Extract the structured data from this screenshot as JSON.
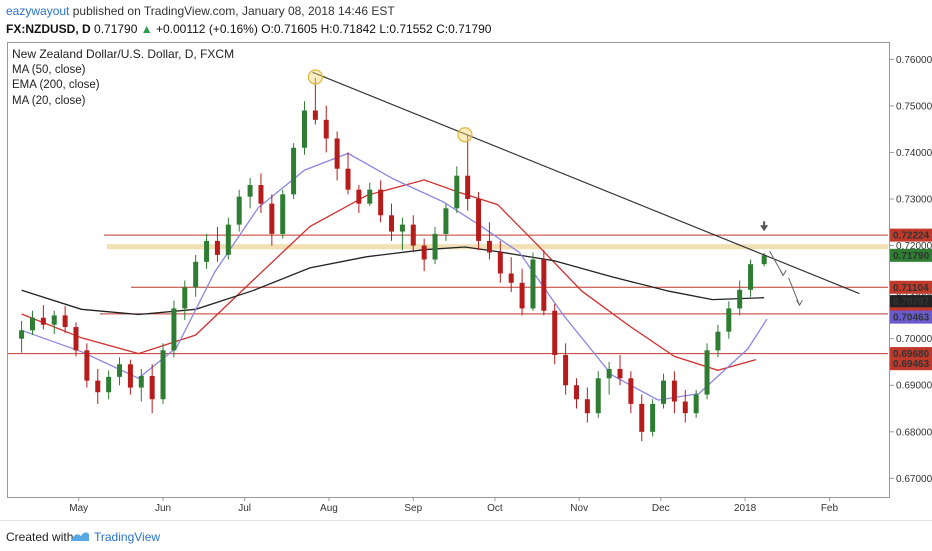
{
  "header": {
    "author": "eazywayout",
    "published_text": "published on TradingView.com, January 08, 2018 14:46 EST",
    "symbol": "FX:NZDUSD, D",
    "last": "0.71790",
    "change": "+0.00112 (+0.16%)",
    "ohlc": {
      "o": "0.71605",
      "h": "0.71842",
      "l": "0.71552",
      "c": "0.71790"
    },
    "ohlc_labels": {
      "o": "O:",
      "h": "H:",
      "l": "L:",
      "c": "C:"
    }
  },
  "legend": {
    "title": "New Zealand Dollar/U.S. Dollar, D, FXCM",
    "lines": [
      "MA (50, close)",
      "EMA (200, close)",
      "MA (20, close)"
    ]
  },
  "footer": {
    "created_with": "Created with",
    "brand": "TradingView"
  },
  "colors": {
    "up": "#2e7d32",
    "down": "#b71c1c",
    "ma50": "#d32f2f",
    "ema200": "#222222",
    "ma20": "#8b86e6",
    "hline": "#c0392b",
    "zone": "#f0d9a7",
    "trend": "#333333"
  },
  "chart_data": {
    "type": "candlestick",
    "x_axis": {
      "ticks": [
        "May",
        "Jun",
        "Jul",
        "Aug",
        "Sep",
        "Oct",
        "Nov",
        "Dec",
        "2018",
        "Feb"
      ]
    },
    "y_axis": {
      "range": [
        0.666,
        0.7635
      ],
      "ticks": [
        "0.76000",
        "0.75000",
        "0.74000",
        "0.73000",
        "0.72000",
        "0.71000",
        "0.70000",
        "0.69000",
        "0.68000",
        "0.67000"
      ]
    },
    "price_labels": [
      {
        "text": "0.72224",
        "value": 0.72224,
        "bg": "#c0392b",
        "fg": "#ffffff"
      },
      {
        "text": "0.71790",
        "value": 0.7179,
        "bg": "#2e7d32",
        "fg": "#ffffff"
      },
      {
        "text": "0.71104",
        "value": 0.71104,
        "bg": "#c0392b",
        "fg": "#ffffff"
      },
      {
        "text": "0.70797",
        "value": 0.70797,
        "bg": "#222222",
        "fg": "#ffffff"
      },
      {
        "text": "0.70534",
        "value": 0.70534,
        "bg": "#c0392b",
        "fg": "#ffffff"
      },
      {
        "text": "0.70463",
        "value": 0.70463,
        "bg": "#6a5acd",
        "fg": "#ffffff"
      },
      {
        "text": "0.69680",
        "value": 0.6968,
        "bg": "#c0392b",
        "fg": "#ffffff"
      },
      {
        "text": "0.69463",
        "value": 0.69463,
        "bg": "#c0392b",
        "fg": "#ffffff"
      }
    ],
    "horizontal_levels": [
      0.72224,
      0.71104,
      0.70534,
      0.6968
    ],
    "resistance_zone": [
      0.7192,
      0.7203
    ],
    "trendline": {
      "from": [
        "2017-07-26",
        0.7572
      ],
      "to": [
        "2018-02-12",
        0.7097
      ]
    },
    "highlight_points": [
      [
        "2017-07-27",
        0.7562
      ],
      [
        "2017-09-20",
        0.7438
      ]
    ],
    "projection_arrows": [
      [
        [
          "2018-01-10",
          0.7188
        ],
        [
          "2018-01-15",
          0.7136
        ]
      ],
      [
        [
          "2018-01-17",
          0.7131
        ],
        [
          "2018-01-21",
          0.7072
        ]
      ]
    ],
    "down_marker": [
      "2018-01-08",
      0.7222
    ],
    "series": [
      {
        "name": "MA (50, close)",
        "points": [
          [
            "2017-04-10",
            0.7053
          ],
          [
            "2017-05-02",
            0.7002
          ],
          [
            "2017-05-23",
            0.6968
          ],
          [
            "2017-06-13",
            0.7008
          ],
          [
            "2017-07-04",
            0.7125
          ],
          [
            "2017-07-25",
            0.7241
          ],
          [
            "2017-08-15",
            0.7308
          ],
          [
            "2017-09-05",
            0.7341
          ],
          [
            "2017-09-18",
            0.7314
          ],
          [
            "2017-10-02",
            0.7288
          ],
          [
            "2017-10-16",
            0.7205
          ],
          [
            "2017-11-02",
            0.7102
          ],
          [
            "2017-11-20",
            0.7025
          ],
          [
            "2017-12-06",
            0.6962
          ],
          [
            "2017-12-22",
            0.6932
          ],
          [
            "2018-01-05",
            0.6955
          ]
        ]
      },
      {
        "name": "EMA (200, close)",
        "points": [
          [
            "2017-04-10",
            0.7104
          ],
          [
            "2017-05-02",
            0.7063
          ],
          [
            "2017-05-23",
            0.7052
          ],
          [
            "2017-06-13",
            0.7063
          ],
          [
            "2017-07-04",
            0.7103
          ],
          [
            "2017-07-25",
            0.7152
          ],
          [
            "2017-08-15",
            0.7176
          ],
          [
            "2017-09-05",
            0.7191
          ],
          [
            "2017-09-20",
            0.7197
          ],
          [
            "2017-10-02",
            0.7187
          ],
          [
            "2017-10-23",
            0.7167
          ],
          [
            "2017-11-13",
            0.7133
          ],
          [
            "2017-12-04",
            0.7102
          ],
          [
            "2017-12-20",
            0.7084
          ],
          [
            "2018-01-08",
            0.7088
          ]
        ]
      },
      {
        "name": "MA (20, close)",
        "points": [
          [
            "2017-04-10",
            0.7018
          ],
          [
            "2017-05-02",
            0.6972
          ],
          [
            "2017-05-23",
            0.6915
          ],
          [
            "2017-06-06",
            0.6981
          ],
          [
            "2017-06-20",
            0.7143
          ],
          [
            "2017-07-06",
            0.7281
          ],
          [
            "2017-07-23",
            0.7362
          ],
          [
            "2017-08-08",
            0.7398
          ],
          [
            "2017-08-25",
            0.7342
          ],
          [
            "2017-09-12",
            0.7294
          ],
          [
            "2017-09-25",
            0.7245
          ],
          [
            "2017-10-10",
            0.7185
          ],
          [
            "2017-10-26",
            0.7052
          ],
          [
            "2017-11-13",
            0.6922
          ],
          [
            "2017-11-30",
            0.6868
          ],
          [
            "2017-12-15",
            0.6882
          ],
          [
            "2018-01-02",
            0.6978
          ],
          [
            "2018-01-09",
            0.7042
          ]
        ]
      }
    ],
    "candles": [
      [
        "2017-04-10",
        0.7,
        0.7038,
        0.697,
        0.7018
      ],
      [
        "2017-04-14",
        0.7018,
        0.706,
        0.7008,
        0.7045
      ],
      [
        "2017-04-18",
        0.7045,
        0.7072,
        0.702,
        0.703
      ],
      [
        "2017-04-22",
        0.703,
        0.706,
        0.701,
        0.705
      ],
      [
        "2017-04-26",
        0.705,
        0.707,
        0.7012,
        0.7025
      ],
      [
        "2017-04-30",
        0.7025,
        0.7035,
        0.6962,
        0.6975
      ],
      [
        "2017-05-04",
        0.6975,
        0.699,
        0.6895,
        0.691
      ],
      [
        "2017-05-08",
        0.691,
        0.6935,
        0.686,
        0.6885
      ],
      [
        "2017-05-12",
        0.6885,
        0.6932,
        0.687,
        0.6918
      ],
      [
        "2017-05-16",
        0.6918,
        0.696,
        0.69,
        0.6945
      ],
      [
        "2017-05-20",
        0.6945,
        0.6955,
        0.688,
        0.6895
      ],
      [
        "2017-05-24",
        0.6895,
        0.6935,
        0.6865,
        0.692
      ],
      [
        "2017-05-28",
        0.692,
        0.6945,
        0.684,
        0.687
      ],
      [
        "2017-06-01",
        0.687,
        0.699,
        0.686,
        0.6975
      ],
      [
        "2017-06-05",
        0.6975,
        0.7082,
        0.696,
        0.7065
      ],
      [
        "2017-06-09",
        0.7065,
        0.7125,
        0.704,
        0.711
      ],
      [
        "2017-06-13",
        0.711,
        0.718,
        0.709,
        0.7165
      ],
      [
        "2017-06-17",
        0.7165,
        0.7225,
        0.715,
        0.721
      ],
      [
        "2017-06-21",
        0.721,
        0.724,
        0.7165,
        0.718
      ],
      [
        "2017-06-25",
        0.718,
        0.726,
        0.717,
        0.7245
      ],
      [
        "2017-06-29",
        0.7245,
        0.732,
        0.723,
        0.7305
      ],
      [
        "2017-07-03",
        0.7305,
        0.7345,
        0.728,
        0.733
      ],
      [
        "2017-07-07",
        0.733,
        0.7355,
        0.727,
        0.729
      ],
      [
        "2017-07-11",
        0.729,
        0.731,
        0.72,
        0.7225
      ],
      [
        "2017-07-15",
        0.7225,
        0.732,
        0.7215,
        0.731
      ],
      [
        "2017-07-19",
        0.731,
        0.742,
        0.73,
        0.741
      ],
      [
        "2017-07-23",
        0.741,
        0.751,
        0.7395,
        0.749
      ],
      [
        "2017-07-27",
        0.749,
        0.756,
        0.746,
        0.747
      ],
      [
        "2017-07-31",
        0.747,
        0.75,
        0.74,
        0.743
      ],
      [
        "2017-08-04",
        0.743,
        0.7445,
        0.734,
        0.7365
      ],
      [
        "2017-08-08",
        0.7365,
        0.74,
        0.731,
        0.732
      ],
      [
        "2017-08-12",
        0.732,
        0.733,
        0.727,
        0.729
      ],
      [
        "2017-08-16",
        0.729,
        0.7335,
        0.7285,
        0.732
      ],
      [
        "2017-08-20",
        0.732,
        0.734,
        0.725,
        0.7265
      ],
      [
        "2017-08-24",
        0.7265,
        0.729,
        0.721,
        0.723
      ],
      [
        "2017-08-28",
        0.723,
        0.726,
        0.719,
        0.7245
      ],
      [
        "2017-09-01",
        0.7245,
        0.7265,
        0.7185,
        0.72
      ],
      [
        "2017-09-05",
        0.72,
        0.7215,
        0.7145,
        0.717
      ],
      [
        "2017-09-09",
        0.717,
        0.724,
        0.716,
        0.7225
      ],
      [
        "2017-09-13",
        0.7225,
        0.729,
        0.721,
        0.728
      ],
      [
        "2017-09-17",
        0.728,
        0.737,
        0.727,
        0.735
      ],
      [
        "2017-09-21",
        0.735,
        0.7438,
        0.7275,
        0.73
      ],
      [
        "2017-09-25",
        0.73,
        0.7315,
        0.719,
        0.721
      ],
      [
        "2017-09-29",
        0.721,
        0.725,
        0.717,
        0.7185
      ],
      [
        "2017-10-03",
        0.7185,
        0.721,
        0.712,
        0.714
      ],
      [
        "2017-10-07",
        0.714,
        0.7175,
        0.71,
        0.712
      ],
      [
        "2017-10-11",
        0.712,
        0.715,
        0.705,
        0.7065
      ],
      [
        "2017-10-15",
        0.7065,
        0.7185,
        0.706,
        0.717
      ],
      [
        "2017-10-19",
        0.717,
        0.719,
        0.705,
        0.706
      ],
      [
        "2017-10-23",
        0.706,
        0.7075,
        0.6945,
        0.6965
      ],
      [
        "2017-10-27",
        0.6965,
        0.699,
        0.688,
        0.69
      ],
      [
        "2017-10-31",
        0.69,
        0.6915,
        0.685,
        0.687
      ],
      [
        "2017-11-04",
        0.687,
        0.6895,
        0.682,
        0.684
      ],
      [
        "2017-11-08",
        0.684,
        0.693,
        0.683,
        0.6915
      ],
      [
        "2017-11-12",
        0.6915,
        0.695,
        0.688,
        0.6935
      ],
      [
        "2017-11-16",
        0.6935,
        0.6965,
        0.69,
        0.6915
      ],
      [
        "2017-11-20",
        0.6915,
        0.693,
        0.684,
        0.686
      ],
      [
        "2017-11-24",
        0.686,
        0.688,
        0.678,
        0.68
      ],
      [
        "2017-11-28",
        0.68,
        0.687,
        0.679,
        0.686
      ],
      [
        "2017-12-02",
        0.686,
        0.6925,
        0.685,
        0.691
      ],
      [
        "2017-12-06",
        0.691,
        0.693,
        0.684,
        0.6865
      ],
      [
        "2017-12-10",
        0.6865,
        0.689,
        0.682,
        0.684
      ],
      [
        "2017-12-14",
        0.684,
        0.689,
        0.683,
        0.688
      ],
      [
        "2017-12-18",
        0.688,
        0.699,
        0.687,
        0.6975
      ],
      [
        "2017-12-22",
        0.6975,
        0.703,
        0.696,
        0.7015
      ],
      [
        "2017-12-26",
        0.7015,
        0.708,
        0.7,
        0.7065
      ],
      [
        "2017-12-30",
        0.7065,
        0.7125,
        0.705,
        0.7105
      ],
      [
        "2018-01-03",
        0.7105,
        0.717,
        0.709,
        0.716
      ],
      [
        "2018-01-08",
        0.716,
        0.7184,
        0.7155,
        0.7179
      ]
    ]
  }
}
